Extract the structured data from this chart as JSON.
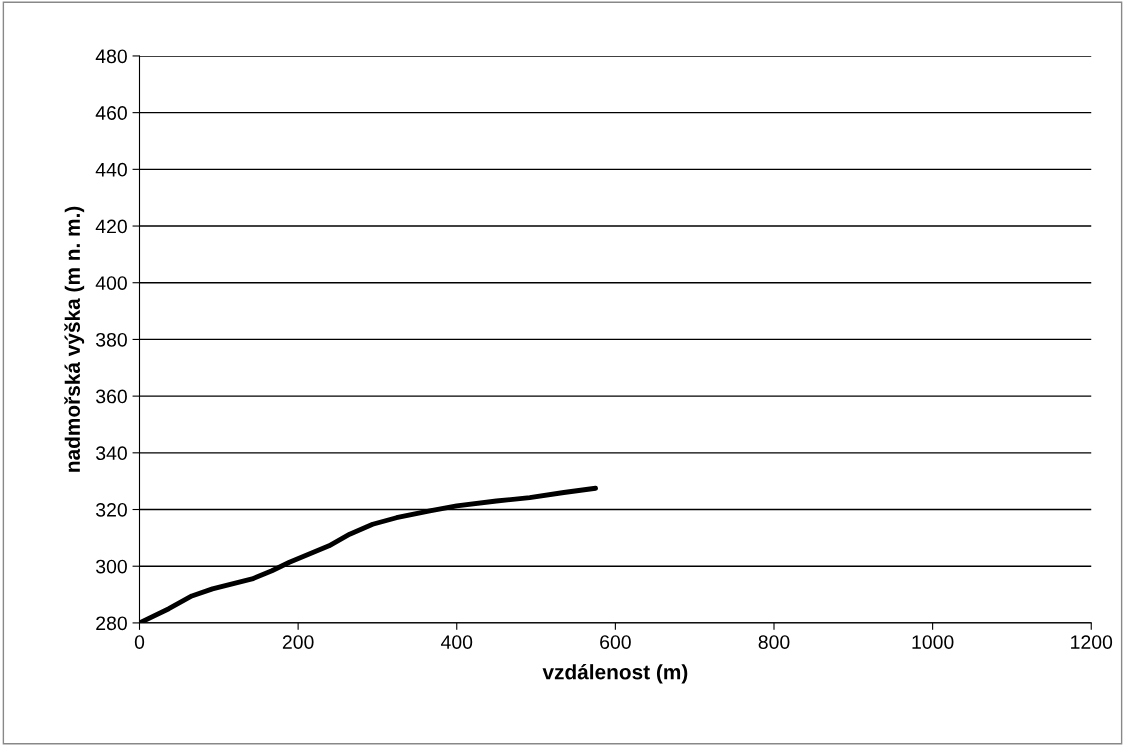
{
  "chart_data": {
    "type": "line",
    "xlabel": "vzdálenost (m)",
    "ylabel": "nadmořská výška (m n. m.)",
    "x": [
      0,
      37,
      66,
      92,
      142,
      167,
      189,
      239,
      265,
      294,
      324,
      366,
      400,
      450,
      492,
      535,
      575
    ],
    "series": [
      {
        "color": "#000000",
        "values": [
          280,
          285,
          289.5,
          292,
          295.5,
          298.4,
          301.4,
          307.2,
          311.3,
          314.8,
          317.1,
          319.5,
          321.3,
          323,
          324.2,
          326,
          327.5
        ]
      }
    ],
    "xlim": [
      0,
      1200
    ],
    "xticks": [
      0,
      200,
      400,
      600,
      800,
      1000,
      1200
    ],
    "ylim": [
      280,
      480
    ],
    "yticks": [
      280,
      300,
      320,
      340,
      360,
      380,
      400,
      420,
      440,
      460,
      480
    ],
    "grid": "y",
    "marker": "none",
    "line_style": "solid"
  }
}
